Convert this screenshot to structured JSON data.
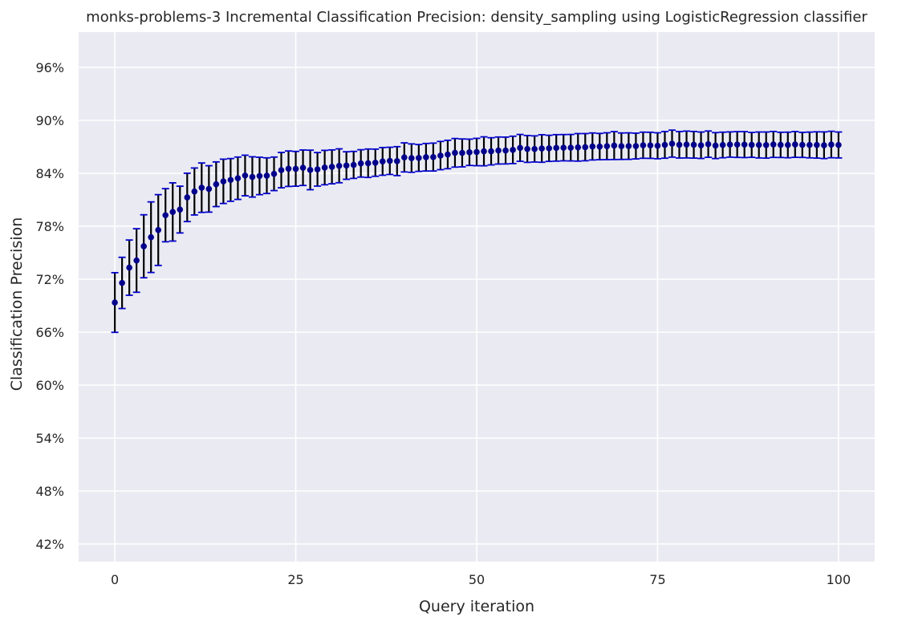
{
  "chart_data": {
    "type": "scatter",
    "title": "monks-problems-3 Incremental Classification Precision: density_sampling using LogisticRegression classifier",
    "xlabel": "Query iteration",
    "ylabel": "Classification Precision",
    "xlim": [
      -5,
      105
    ],
    "ylim": [
      0.4,
      1.0
    ],
    "xticks": [
      0,
      25,
      50,
      75,
      100
    ],
    "xtick_labels": [
      "0",
      "25",
      "50",
      "75",
      "100"
    ],
    "yticks": [
      0.42,
      0.48,
      0.54,
      0.6,
      0.66,
      0.72,
      0.78,
      0.84,
      0.9,
      0.96
    ],
    "ytick_labels": [
      "42%",
      "48%",
      "54%",
      "60%",
      "66%",
      "72%",
      "78%",
      "84%",
      "90%",
      "96%"
    ],
    "grid": true,
    "background": "#eaeaf2",
    "grid_color": "#ffffff",
    "marker_color": "#00008b",
    "errorbar_color": "#000000",
    "cap_color": "#0000cd",
    "series": [
      {
        "x": [
          0,
          1,
          2,
          3,
          4,
          5,
          6,
          7,
          8,
          9,
          10,
          11,
          12,
          13,
          14,
          15,
          16,
          17,
          18,
          19,
          20,
          21,
          22,
          23,
          24,
          25,
          26,
          27,
          28,
          29,
          30,
          31,
          32,
          33,
          34,
          35,
          36,
          37,
          38,
          39,
          40,
          41,
          42,
          43,
          44,
          45,
          46,
          47,
          48,
          49,
          50,
          51,
          52,
          53,
          54,
          55,
          56,
          57,
          58,
          59,
          60,
          61,
          62,
          63,
          64,
          65,
          66,
          67,
          68,
          69,
          70,
          71,
          72,
          73,
          74,
          75,
          76,
          77,
          78,
          79,
          80,
          81,
          82,
          83,
          84,
          85,
          86,
          87,
          88,
          89,
          90,
          91,
          92,
          93,
          94,
          95,
          96,
          97,
          98,
          99,
          100
        ],
        "y": [
          0.6936,
          0.7158,
          0.7331,
          0.7412,
          0.7573,
          0.7676,
          0.7757,
          0.7925,
          0.7962,
          0.7989,
          0.8127,
          0.8194,
          0.8237,
          0.8223,
          0.8276,
          0.8309,
          0.8325,
          0.8344,
          0.8375,
          0.8359,
          0.837,
          0.8373,
          0.8394,
          0.8436,
          0.8452,
          0.8451,
          0.8463,
          0.8438,
          0.8445,
          0.8465,
          0.8473,
          0.8485,
          0.8488,
          0.8495,
          0.8512,
          0.8514,
          0.852,
          0.8535,
          0.8541,
          0.8538,
          0.858,
          0.8572,
          0.8574,
          0.8582,
          0.8584,
          0.8601,
          0.8613,
          0.8632,
          0.8631,
          0.8638,
          0.8641,
          0.8649,
          0.8649,
          0.8658,
          0.8658,
          0.8665,
          0.8688,
          0.8676,
          0.8676,
          0.8681,
          0.8683,
          0.8688,
          0.869,
          0.869,
          0.8694,
          0.8696,
          0.8704,
          0.8703,
          0.8707,
          0.8714,
          0.8707,
          0.8708,
          0.8709,
          0.8718,
          0.8717,
          0.8712,
          0.8722,
          0.8736,
          0.8723,
          0.8726,
          0.8723,
          0.8718,
          0.873,
          0.8714,
          0.8721,
          0.8726,
          0.8726,
          0.8725,
          0.8722,
          0.8721,
          0.872,
          0.8727,
          0.8722,
          0.8721,
          0.8727,
          0.8722,
          0.8721,
          0.8721,
          0.8718,
          0.8726,
          0.8721
        ],
        "err": [
          0.0338,
          0.029,
          0.0313,
          0.036,
          0.0357,
          0.04,
          0.0401,
          0.0301,
          0.033,
          0.0265,
          0.0274,
          0.0266,
          0.028,
          0.0263,
          0.0253,
          0.0251,
          0.0242,
          0.024,
          0.023,
          0.0228,
          0.0212,
          0.0202,
          0.019,
          0.02,
          0.0201,
          0.0197,
          0.0201,
          0.0224,
          0.019,
          0.0195,
          0.0192,
          0.0192,
          0.0156,
          0.0153,
          0.0155,
          0.0161,
          0.0154,
          0.0157,
          0.0154,
          0.0164,
          0.0165,
          0.0161,
          0.0152,
          0.0156,
          0.0158,
          0.016,
          0.0161,
          0.0162,
          0.0158,
          0.0149,
          0.0155,
          0.0164,
          0.0154,
          0.0153,
          0.0152,
          0.0155,
          0.0152,
          0.0152,
          0.0148,
          0.0156,
          0.0148,
          0.015,
          0.0149,
          0.015,
          0.0156,
          0.0154,
          0.0153,
          0.0149,
          0.0152,
          0.0158,
          0.015,
          0.015,
          0.0146,
          0.0148,
          0.0148,
          0.0147,
          0.0151,
          0.0153,
          0.015,
          0.0152,
          0.0151,
          0.015,
          0.0149,
          0.0147,
          0.0145,
          0.0143,
          0.0146,
          0.0147,
          0.0141,
          0.0147,
          0.0148,
          0.0147,
          0.0143,
          0.0145,
          0.0146,
          0.0142,
          0.0146,
          0.0149,
          0.0151,
          0.015,
          0.0147
        ]
      }
    ]
  }
}
